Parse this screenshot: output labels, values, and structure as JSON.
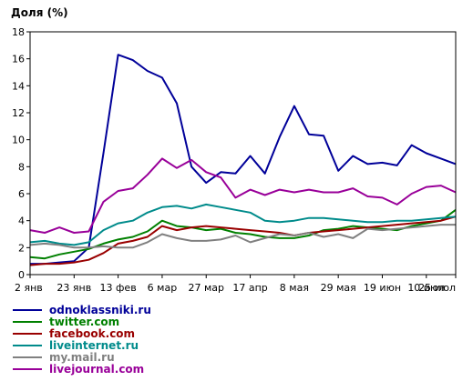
{
  "chart_data": {
    "type": "line",
    "title": "",
    "ylabel": "Доля (%)",
    "xlabel": "",
    "ylim": [
      0,
      18
    ],
    "y_ticks": [
      0,
      2,
      4,
      6,
      8,
      10,
      12,
      14,
      16,
      18
    ],
    "x_tick_labels": [
      "2 янв",
      "23 янв",
      "13 фев",
      "6 мар",
      "27 мар",
      "17 апр",
      "8 мая",
      "29 мая",
      "19 июн",
      "10 июл",
      "25 июл"
    ],
    "x_tick_index": [
      0,
      3,
      6,
      9,
      12,
      15,
      18,
      21,
      24,
      27,
      29
    ],
    "x_count": 30,
    "grid": false,
    "legend_position": "bottom-left",
    "series": [
      {
        "name": "odnoklassniki.ru",
        "color": "#000099",
        "values": [
          0.8,
          0.8,
          0.9,
          1.0,
          2.0,
          9.0,
          16.3,
          15.9,
          15.1,
          14.6,
          12.7,
          8.0,
          6.8,
          7.6,
          7.5,
          8.8,
          7.5,
          10.2,
          12.5,
          10.4,
          10.3,
          7.7,
          8.8,
          8.2,
          8.3,
          8.1,
          9.6,
          9.0,
          8.6,
          8.2
        ]
      },
      {
        "name": "twitter.com",
        "color": "#008000",
        "values": [
          1.3,
          1.2,
          1.5,
          1.7,
          1.9,
          2.3,
          2.6,
          2.8,
          3.2,
          4.0,
          3.6,
          3.5,
          3.3,
          3.4,
          3.1,
          3.0,
          2.8,
          2.7,
          2.7,
          2.9,
          3.3,
          3.4,
          3.6,
          3.5,
          3.4,
          3.3,
          3.6,
          3.8,
          4.0,
          4.8
        ]
      },
      {
        "name": "facebook.com",
        "color": "#990000",
        "values": [
          0.7,
          0.8,
          0.8,
          0.9,
          1.1,
          1.6,
          2.3,
          2.5,
          2.8,
          3.6,
          3.3,
          3.5,
          3.6,
          3.5,
          3.4,
          3.3,
          3.2,
          3.1,
          2.9,
          3.1,
          3.2,
          3.3,
          3.4,
          3.5,
          3.6,
          3.7,
          3.8,
          3.9,
          4.0,
          4.3
        ]
      },
      {
        "name": "liveinternet.ru",
        "color": "#008B8B",
        "values": [
          2.4,
          2.5,
          2.3,
          2.2,
          2.4,
          3.3,
          3.8,
          4.0,
          4.6,
          5.0,
          5.1,
          4.9,
          5.2,
          5.0,
          4.8,
          4.6,
          4.0,
          3.9,
          4.0,
          4.2,
          4.2,
          4.1,
          4.0,
          3.9,
          3.9,
          4.0,
          4.0,
          4.1,
          4.2,
          4.3
        ]
      },
      {
        "name": "my.mail.ru",
        "color": "#808080",
        "values": [
          2.2,
          2.3,
          2.2,
          2.0,
          2.0,
          2.1,
          2.0,
          2.0,
          2.4,
          3.0,
          2.7,
          2.5,
          2.5,
          2.6,
          2.9,
          2.4,
          2.7,
          3.0,
          2.9,
          3.1,
          2.8,
          3.0,
          2.7,
          3.4,
          3.3,
          3.4,
          3.5,
          3.6,
          3.7,
          3.7
        ]
      },
      {
        "name": "livejournal.com",
        "color": "#990099",
        "values": [
          3.3,
          3.1,
          3.5,
          3.1,
          3.2,
          5.4,
          6.2,
          6.4,
          7.4,
          8.6,
          7.9,
          8.5,
          7.6,
          7.2,
          5.7,
          6.3,
          5.9,
          6.3,
          6.1,
          6.3,
          6.1,
          6.1,
          6.4,
          5.8,
          5.7,
          5.2,
          6.0,
          6.5,
          6.6,
          6.1
        ]
      }
    ]
  }
}
